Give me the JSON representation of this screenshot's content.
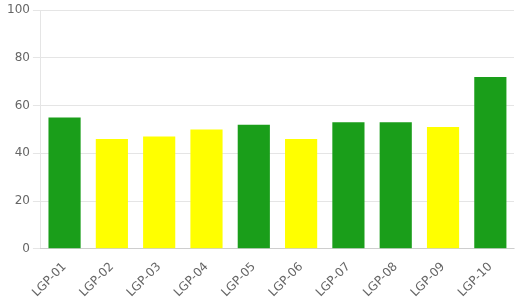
{
  "chart_data": {
    "type": "bar",
    "categories": [
      "LGP-01",
      "LGP-02",
      "LGP-03",
      "LGP-04",
      "LGP-05",
      "LGP-06",
      "LGP-07",
      "LGP-08",
      "LGP-09",
      "LGP-10"
    ],
    "values": [
      55,
      46,
      47,
      50,
      52,
      46,
      53,
      53,
      51,
      72
    ],
    "colors": [
      "#1a9e1a",
      "#ffff00",
      "#ffff00",
      "#ffff00",
      "#1a9e1a",
      "#ffff00",
      "#1a9e1a",
      "#1a9e1a",
      "#ffff00",
      "#1a9e1a"
    ],
    "ylim": [
      0,
      100
    ],
    "yticks": [
      0,
      20,
      40,
      60,
      80,
      100
    ],
    "grid": true
  }
}
